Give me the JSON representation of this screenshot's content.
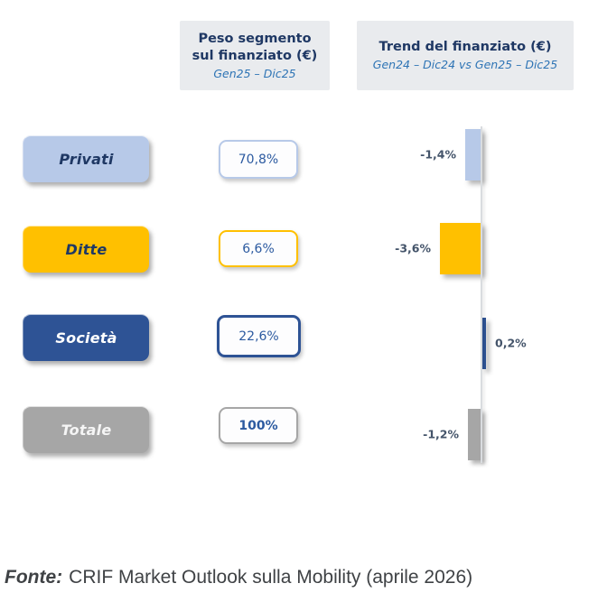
{
  "columns": {
    "peso": {
      "title": "Peso segmento sul finanziato (€)",
      "subtitle": "Gen25 – Dic25"
    },
    "trend": {
      "title": "Trend del finanziato (€)",
      "subtitle": "Gen24 – Dic24 vs Gen25 – Dic25"
    }
  },
  "rows": [
    {
      "label": "Privati",
      "peso": "70,8%",
      "trend_label": "-1,4%",
      "trend_value": -1.4,
      "colors": {
        "fill": "#b7c9e8",
        "label_text": "#1f3864"
      }
    },
    {
      "label": "Ditte",
      "peso": "6,6%",
      "trend_label": "-3,6%",
      "trend_value": -3.6,
      "colors": {
        "fill": "#ffc000",
        "label_text": "#1f3864"
      }
    },
    {
      "label": "Società",
      "peso": "22,6%",
      "trend_label": "0,2%",
      "trend_value": 0.2,
      "colors": {
        "fill": "#2e5395",
        "label_text": "#ffffff"
      }
    },
    {
      "label": "Totale",
      "peso": "100%",
      "trend_label": "-1,2%",
      "trend_value": -1.2,
      "colors": {
        "fill": "#a6a6a6",
        "label_text": "#f5f5f5"
      }
    }
  ],
  "footer": {
    "prefix": "Fonte:",
    "text": "CRIF Market Outlook sulla Mobility (aprile 2026)"
  },
  "chart_data": {
    "type": "bar",
    "orientation": "horizontal",
    "title": "Trend del finanziato (€)",
    "subtitle": "Gen24 – Dic24 vs Gen25 – Dic25",
    "categories": [
      "Privati",
      "Ditte",
      "Società",
      "Totale"
    ],
    "series": [
      {
        "name": "Peso segmento sul finanziato (€) Gen25 – Dic25",
        "unit": "%",
        "values": [
          70.8,
          6.6,
          22.6,
          100.0
        ],
        "value_labels": [
          "70,8%",
          "6,6%",
          "22,6%",
          "100%"
        ]
      },
      {
        "name": "Trend del finanziato (€) Gen24 – Dic24 vs Gen25 – Dic25",
        "unit": "%",
        "values": [
          -1.4,
          -3.6,
          0.2,
          -1.2
        ],
        "value_labels": [
          "-1,4%",
          "-3,6%",
          "0,2%",
          "-1,2%"
        ]
      }
    ],
    "bar_colors": [
      "#b7c9e8",
      "#ffc000",
      "#2e5395",
      "#a6a6a6"
    ],
    "axis": {
      "baseline": 0,
      "negative_direction": "left"
    },
    "grid": false,
    "legend": "none"
  }
}
